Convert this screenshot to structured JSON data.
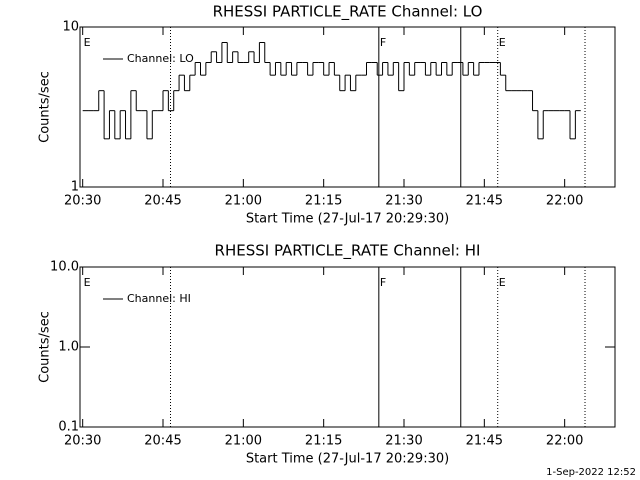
{
  "chart_data": [
    {
      "type": "line",
      "title": "RHESSI PARTICLE_RATE Channel: LO",
      "xlabel": "Start Time (27-Jul-17 20:29:30)",
      "ylabel": "Counts/sec",
      "log_y": true,
      "drawstyle": "steps",
      "legend": "upper left",
      "xlim": [
        -0.5,
        99.4
      ],
      "xticks": [
        {
          "value": 0,
          "label": "20:30"
        },
        {
          "value": 15,
          "label": "20:45"
        },
        {
          "value": 30,
          "label": "21:00"
        },
        {
          "value": 45,
          "label": "21:15"
        },
        {
          "value": 60,
          "label": "21:30"
        },
        {
          "value": 75,
          "label": "21:45"
        },
        {
          "value": 90,
          "label": "22:00"
        }
      ],
      "ylim": [
        1,
        10
      ],
      "yticks": [
        1,
        10
      ],
      "x": [
        0,
        1,
        2,
        3,
        4,
        5,
        6,
        7,
        8,
        9,
        10,
        11,
        12,
        13,
        14,
        15,
        16,
        17,
        18,
        19,
        20,
        21,
        22,
        23,
        24,
        25,
        26,
        27,
        28,
        29,
        30,
        31,
        32,
        33,
        34,
        35,
        36,
        37,
        38,
        39,
        40,
        41,
        42,
        43,
        44,
        45,
        46,
        47,
        48,
        49,
        50,
        51,
        52,
        53,
        54,
        55,
        56,
        57,
        58,
        59,
        60,
        61,
        62,
        63,
        64,
        65,
        66,
        67,
        68,
        69,
        70,
        71,
        72,
        73,
        74,
        75,
        76,
        77,
        78,
        79,
        80,
        81,
        82,
        83,
        84,
        85,
        86,
        87,
        88,
        89,
        90,
        91,
        92,
        93
      ],
      "series": [
        {
          "name": "Channel: LO",
          "color": "#000000",
          "values": [
            3,
            3,
            3,
            4,
            2,
            3,
            2,
            3,
            2,
            4,
            3,
            3,
            2,
            3,
            3,
            4,
            3,
            4,
            5,
            4,
            5,
            6,
            5,
            6,
            7,
            6,
            8,
            6,
            7,
            6,
            6,
            7,
            6,
            8,
            6,
            5,
            6,
            5,
            6,
            5,
            6,
            6,
            5,
            6,
            6,
            5,
            6,
            5,
            4,
            5,
            4,
            5,
            5,
            6,
            6,
            5,
            6,
            5,
            6,
            4,
            6,
            5,
            6,
            6,
            5,
            6,
            5,
            6,
            5,
            6,
            6,
            5,
            6,
            5,
            6,
            6,
            6,
            6,
            5,
            4,
            4,
            4,
            4,
            4,
            3,
            2,
            3,
            3,
            3,
            3,
            3,
            2,
            3,
            3
          ]
        }
      ],
      "vlines": [
        {
          "x": 16.4,
          "style": "dotted"
        },
        {
          "x": 55.3,
          "style": "solid"
        },
        {
          "x": 70.6,
          "style": "solid"
        },
        {
          "x": 77.5,
          "style": "dotted"
        },
        {
          "x": 93.8,
          "style": "dotted"
        }
      ],
      "annotations": [
        {
          "text": "E",
          "x": 0
        },
        {
          "text": "F",
          "x": 55.3
        },
        {
          "text": "E",
          "x": 77.5
        }
      ]
    },
    {
      "type": "line",
      "title": "RHESSI PARTICLE_RATE Channel: HI",
      "xlabel": "Start Time (27-Jul-17 20:29:30)",
      "ylabel": "Counts/sec",
      "log_y": true,
      "drawstyle": "steps",
      "legend": "upper left",
      "xlim": [
        -0.5,
        99.4
      ],
      "xticks": [
        {
          "value": 0,
          "label": "20:30"
        },
        {
          "value": 15,
          "label": "20:45"
        },
        {
          "value": 30,
          "label": "21:00"
        },
        {
          "value": 45,
          "label": "21:15"
        },
        {
          "value": 60,
          "label": "21:30"
        },
        {
          "value": 75,
          "label": "21:45"
        },
        {
          "value": 90,
          "label": "22:00"
        }
      ],
      "ylim": [
        0.1,
        10
      ],
      "yticks": [
        {
          "value": 0.1,
          "label": "0.1"
        },
        {
          "value": 1,
          "label": "1.0"
        },
        {
          "value": 10,
          "label": "10.0"
        }
      ],
      "x": [],
      "series": [
        {
          "name": "Channel: HI",
          "color": "#000000",
          "values": []
        }
      ],
      "vlines": [
        {
          "x": 16.4,
          "style": "dotted"
        },
        {
          "x": 55.3,
          "style": "solid"
        },
        {
          "x": 70.6,
          "style": "solid"
        },
        {
          "x": 77.5,
          "style": "dotted"
        },
        {
          "x": 93.8,
          "style": "dotted"
        }
      ],
      "annotations": [
        {
          "text": "E",
          "x": 0
        },
        {
          "text": "F",
          "x": 55.3
        },
        {
          "text": "E",
          "x": 77.5
        }
      ]
    }
  ],
  "footer": "1-Sep-2022 12:52"
}
